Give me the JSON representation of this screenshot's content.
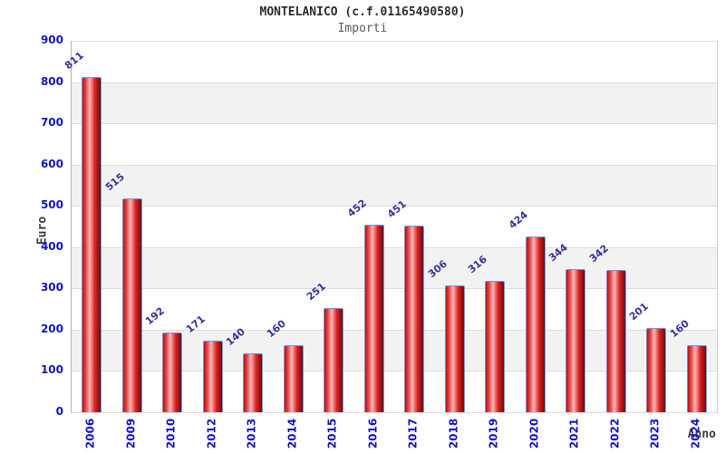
{
  "header": {
    "title": "MONTELANICO (c.f.01165490580)",
    "subtitle": "Importi"
  },
  "chart_data": {
    "type": "bar",
    "title": "MONTELANICO (c.f.01165490580)",
    "subtitle": "Importi",
    "xlabel": "Anno",
    "ylabel": "Euro",
    "categories": [
      "2006",
      "2009",
      "2010",
      "2012",
      "2013",
      "2014",
      "2015",
      "2016",
      "2017",
      "2018",
      "2019",
      "2020",
      "2021",
      "2022",
      "2023",
      "2024"
    ],
    "values": [
      811,
      515,
      192,
      171,
      140,
      160,
      251,
      452,
      451,
      306,
      316,
      424,
      344,
      342,
      201,
      160
    ],
    "ylim": [
      0,
      900
    ],
    "ytick_interval": 100,
    "grid": true,
    "legend": false,
    "band_colors": [
      "#ffffff",
      "#f2f2f2"
    ],
    "gridline_color": "#dcdcdc",
    "bar_gradient": [
      "#b41212",
      "#ea4343",
      "#f7b8b8",
      "#d92424",
      "#7d0303"
    ],
    "bar_border_color": "#5aa0e8",
    "value_label_color": "#333399",
    "tick_label_color": "#1212cf"
  }
}
